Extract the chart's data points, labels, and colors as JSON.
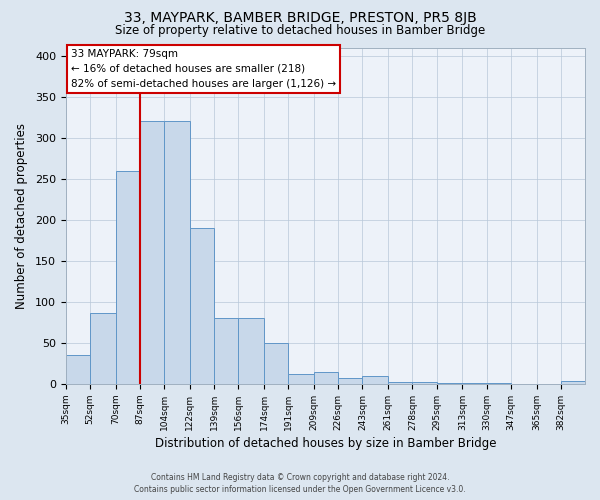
{
  "title": "33, MAYPARK, BAMBER BRIDGE, PRESTON, PR5 8JB",
  "subtitle": "Size of property relative to detached houses in Bamber Bridge",
  "xlabel": "Distribution of detached houses by size in Bamber Bridge",
  "ylabel": "Number of detached properties",
  "bar_labels": [
    "35sqm",
    "52sqm",
    "70sqm",
    "87sqm",
    "104sqm",
    "122sqm",
    "139sqm",
    "156sqm",
    "174sqm",
    "191sqm",
    "209sqm",
    "226sqm",
    "243sqm",
    "261sqm",
    "278sqm",
    "295sqm",
    "313sqm",
    "330sqm",
    "347sqm",
    "365sqm",
    "382sqm"
  ],
  "bar_values": [
    35,
    87,
    260,
    320,
    320,
    190,
    80,
    80,
    50,
    12,
    15,
    7,
    10,
    2,
    2,
    1,
    1,
    1,
    0,
    0,
    3
  ],
  "bar_color": "#c8d8ea",
  "bar_edgecolor": "#6096c8",
  "vline_x": 87,
  "vline_color": "#cc0000",
  "annotation_title": "33 MAYPARK: 79sqm",
  "annotation_line1": "← 16% of detached houses are smaller (218)",
  "annotation_line2": "82% of semi-detached houses are larger (1,126) →",
  "annotation_box_facecolor": "#ffffff",
  "annotation_box_edgecolor": "#cc0000",
  "ylim": [
    0,
    410
  ],
  "yticks": [
    0,
    50,
    100,
    150,
    200,
    250,
    300,
    350,
    400
  ],
  "footer1": "Contains HM Land Registry data © Crown copyright and database right 2024.",
  "footer2": "Contains public sector information licensed under the Open Government Licence v3.0.",
  "bin_edges": [
    35,
    52,
    70,
    87,
    104,
    122,
    139,
    156,
    174,
    191,
    209,
    226,
    243,
    261,
    278,
    295,
    313,
    330,
    347,
    365,
    382,
    399
  ],
  "fig_bg_color": "#dce6f0",
  "plot_bg_color": "#edf2f9"
}
